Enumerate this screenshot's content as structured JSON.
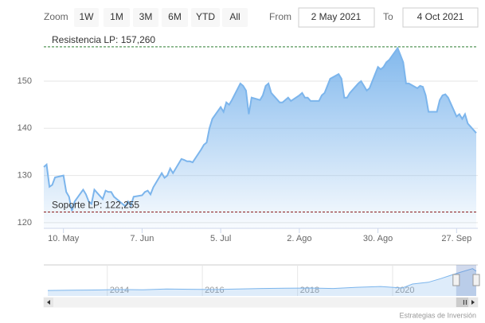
{
  "chart_data": {
    "type": "area",
    "range_selector": {
      "zoom_label": "Zoom",
      "buttons": [
        "1W",
        "1M",
        "3M",
        "6M",
        "YTD",
        "All"
      ],
      "from_label": "From",
      "from": "2 May 2021",
      "to_label": "To",
      "to": "4 Oct 2021"
    },
    "x": [
      "2021-05-03",
      "2021-05-04",
      "2021-05-05",
      "2021-05-06",
      "2021-05-07",
      "2021-05-10",
      "2021-05-11",
      "2021-05-12",
      "2021-05-13",
      "2021-05-14",
      "2021-05-17",
      "2021-05-18",
      "2021-05-19",
      "2021-05-20",
      "2021-05-21",
      "2021-05-24",
      "2021-05-25",
      "2021-05-26",
      "2021-05-27",
      "2021-05-28",
      "2021-05-31",
      "2021-06-01",
      "2021-06-02",
      "2021-06-03",
      "2021-06-04",
      "2021-06-07",
      "2021-06-08",
      "2021-06-09",
      "2021-06-10",
      "2021-06-11",
      "2021-06-14",
      "2021-06-15",
      "2021-06-16",
      "2021-06-17",
      "2021-06-18",
      "2021-06-21",
      "2021-06-22",
      "2021-06-23",
      "2021-06-24",
      "2021-06-25",
      "2021-06-28",
      "2021-06-29",
      "2021-06-30",
      "2021-07-01",
      "2021-07-02",
      "2021-07-05",
      "2021-07-06",
      "2021-07-07",
      "2021-07-08",
      "2021-07-09",
      "2021-07-12",
      "2021-07-13",
      "2021-07-14",
      "2021-07-15",
      "2021-07-16",
      "2021-07-19",
      "2021-07-20",
      "2021-07-21",
      "2021-07-22",
      "2021-07-23",
      "2021-07-26",
      "2021-07-27",
      "2021-07-28",
      "2021-07-29",
      "2021-07-30",
      "2021-08-02",
      "2021-08-03",
      "2021-08-04",
      "2021-08-05",
      "2021-08-06",
      "2021-08-09",
      "2021-08-10",
      "2021-08-11",
      "2021-08-12",
      "2021-08-13",
      "2021-08-16",
      "2021-08-17",
      "2021-08-18",
      "2021-08-19",
      "2021-08-20",
      "2021-08-23",
      "2021-08-24",
      "2021-08-25",
      "2021-08-26",
      "2021-08-27",
      "2021-08-30",
      "2021-08-31",
      "2021-09-01",
      "2021-09-02",
      "2021-09-03",
      "2021-09-06",
      "2021-09-07",
      "2021-09-08",
      "2021-09-09",
      "2021-09-10",
      "2021-09-13",
      "2021-09-14",
      "2021-09-15",
      "2021-09-16",
      "2021-09-17",
      "2021-09-20",
      "2021-09-21",
      "2021-09-22",
      "2021-09-23",
      "2021-09-24",
      "2021-09-27",
      "2021-09-28",
      "2021-09-29",
      "2021-09-30",
      "2021-10-01",
      "2021-10-04"
    ],
    "series": [
      {
        "color": "#7cb5ec",
        "values": [
          131.8,
          132.3,
          127.6,
          128,
          129.6,
          130,
          126.5,
          125.5,
          122.5,
          124.5,
          127,
          126,
          124.5,
          124,
          127,
          125,
          126.8,
          126.5,
          126.5,
          125.5,
          124,
          123.5,
          124.5,
          123.6,
          125.5,
          125.8,
          126.5,
          126.8,
          126,
          127.5,
          130.5,
          129.5,
          130,
          131.5,
          130.5,
          133.5,
          133.3,
          133,
          133,
          132.8,
          135.5,
          136.5,
          137,
          140,
          142,
          144.5,
          143.5,
          145.5,
          145,
          146,
          149.5,
          149,
          148,
          143,
          146.5,
          146,
          147,
          149,
          149.5,
          147.5,
          145.5,
          145.5,
          146,
          146.5,
          145.8,
          147,
          147.5,
          146.5,
          146.5,
          145.8,
          145.8,
          147,
          147.5,
          149,
          150.5,
          151.5,
          150.5,
          146.5,
          146.5,
          147.5,
          149.5,
          150,
          149,
          148,
          148.5,
          153,
          152.5,
          153,
          154,
          154.5,
          157,
          155.5,
          154,
          149.5,
          149.5,
          148.5,
          149,
          148.8,
          147,
          143.5,
          143.5,
          146,
          147,
          147.2,
          146.5,
          142.5,
          143,
          142,
          143,
          141,
          139
        ]
      }
    ],
    "xlim": [
      "2021-05-03",
      "2021-10-04"
    ],
    "xticks": [
      {
        "value": "2021-05-10",
        "label": "10. May"
      },
      {
        "value": "2021-06-07",
        "label": "7. Jun"
      },
      {
        "value": "2021-07-05",
        "label": "5. Jul"
      },
      {
        "value": "2021-08-02",
        "label": "2. Ago"
      },
      {
        "value": "2021-08-30",
        "label": "30. Ago"
      },
      {
        "value": "2021-09-27",
        "label": "27. Sep"
      }
    ],
    "ylim": [
      118.8,
      159.1
    ],
    "yticks": [
      120,
      130,
      140,
      150
    ],
    "grid": true,
    "plot_lines": [
      {
        "label": "Resistencia LP: 157,260",
        "value": 157.26,
        "color": "#2e7d32"
      },
      {
        "label": "Soporte LP: 122,255",
        "value": 122.255,
        "color": "#8b1a1a"
      }
    ],
    "navigator": {
      "x": [
        "2012-10-01",
        "2013-04-01",
        "2013-10-01",
        "2014-04-01",
        "2014-10-01",
        "2015-04-01",
        "2015-10-01",
        "2016-04-01",
        "2016-10-01",
        "2017-04-01",
        "2017-10-01",
        "2018-04-01",
        "2018-10-01",
        "2019-04-01",
        "2019-10-01",
        "2020-03-15",
        "2020-06-01",
        "2020-10-01",
        "2021-01-04",
        "2021-04-01",
        "2021-06-01",
        "2021-09-06",
        "2021-10-04"
      ],
      "values": [
        62,
        63,
        64,
        66,
        65,
        68,
        67,
        66,
        68,
        70,
        71,
        72,
        70,
        75,
        78,
        72,
        88,
        95,
        110,
        125,
        135,
        150,
        140
      ],
      "xlim": [
        "2012-10-01",
        "2021-10-04"
      ],
      "ylim": [
        40,
        165
      ],
      "xticks": [
        {
          "value": "2014-01-01",
          "label": "2014"
        },
        {
          "value": "2016-01-01",
          "label": "2016"
        },
        {
          "value": "2018-01-01",
          "label": "2018"
        },
        {
          "value": "2020-01-01",
          "label": "2020"
        }
      ]
    },
    "credits": "Estrategias de Inversión"
  }
}
